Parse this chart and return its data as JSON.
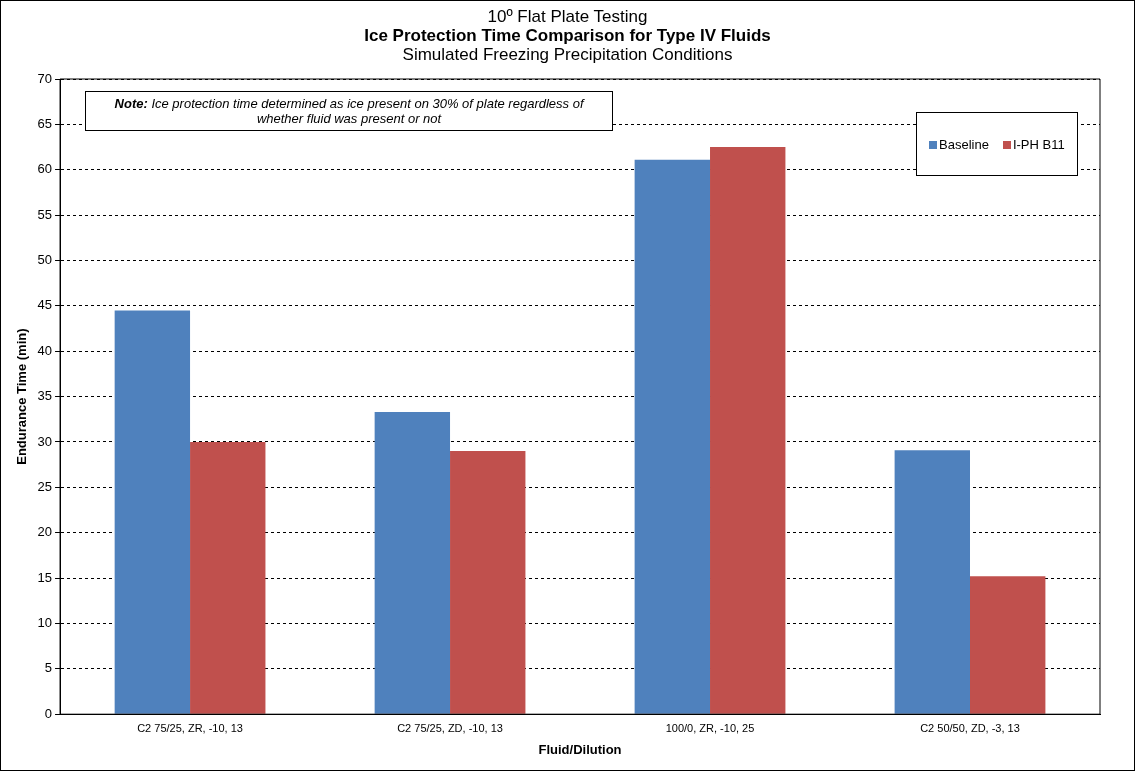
{
  "chart_data": {
    "type": "bar",
    "title": "10º Flat Plate Testing\nIce Protection Time Comparison for Type IV Fluids",
    "subtitle": "Simulated Freezing Precipitation Conditions",
    "xlabel": "Fluid/Dilution",
    "ylabel": "Endurance Time (min)",
    "categories": [
      "C2 75/25, ZR, -10, 13",
      "C2 75/25, ZD, -10, 13",
      "100/0, ZR, -10, 25",
      "C2 50/50, ZD, -3, 13"
    ],
    "series": [
      {
        "name": "Baseline",
        "color": "#4f81bd",
        "values": [
          44.5,
          33.3,
          61.1,
          29.1
        ]
      },
      {
        "name": "I-PH B11",
        "color": "#c0504d",
        "values": [
          30,
          29,
          62.5,
          15.2
        ]
      }
    ],
    "ylim": [
      0,
      70
    ],
    "yticks": [
      0,
      5,
      10,
      15,
      20,
      25,
      30,
      35,
      40,
      45,
      50,
      55,
      60,
      65,
      70
    ],
    "grid": "y",
    "legend": "top right",
    "annotations": [
      "Note: Ice protection time determined as ice present on 30% of plate regardless of whether fluid was present or not"
    ]
  }
}
